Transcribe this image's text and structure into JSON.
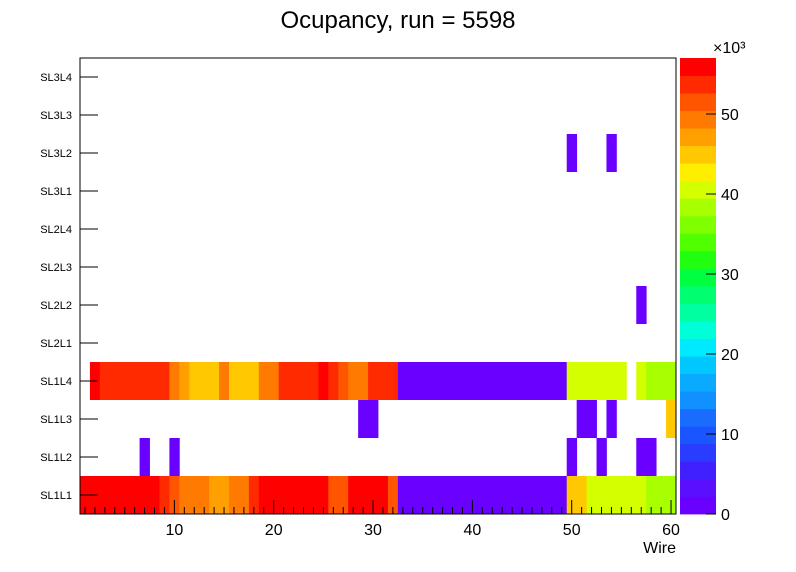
{
  "chart_data": {
    "type": "heatmap",
    "title": "Ocupancy, run = 5598",
    "xlabel": "Wire",
    "ylabel": "",
    "xlim": [
      0.5,
      60.5
    ],
    "x_ticks": [
      10,
      20,
      30,
      40,
      50,
      60
    ],
    "y_categories": [
      "SL1L1",
      "SL1L2",
      "SL1L3",
      "SL1L4",
      "SL2L1",
      "SL2L2",
      "SL2L3",
      "SL2L4",
      "SL3L1",
      "SL3L2",
      "SL3L3",
      "SL3L4"
    ],
    "z_scale_label": "×10³",
    "zlim": [
      0,
      57
    ],
    "z_ticks": [
      0,
      10,
      20,
      30,
      40,
      50
    ],
    "colors": {
      "palette": [
        "#6a00ff",
        "#5a10ff",
        "#4020ff",
        "#2a3cff",
        "#1a55ff",
        "#1a6cff",
        "#1190ff",
        "#0aaaff",
        "#00c8ff",
        "#00eaff",
        "#00ffd8",
        "#00ffa0",
        "#00ff70",
        "#00ff40",
        "#20ff10",
        "#50ff00",
        "#80ff00",
        "#a8ff00",
        "#d4ff00",
        "#ffee00",
        "#ffc800",
        "#ffa000",
        "#ff7a00",
        "#ff5500",
        "#ff2a00",
        "#ff0000"
      ]
    },
    "rows": [
      {
        "name": "SL1L1",
        "values": [
          57,
          57,
          57,
          57,
          57,
          57,
          57,
          57,
          54,
          51,
          49,
          49,
          49,
          47,
          47,
          49,
          49,
          54,
          57,
          57,
          57,
          57,
          57,
          57,
          57,
          51,
          51,
          57,
          57,
          57,
          57,
          52,
          2,
          2,
          2,
          2,
          2,
          2,
          2,
          2,
          2,
          2,
          2,
          2,
          2,
          2,
          2,
          2,
          2,
          44,
          44,
          41,
          41,
          41,
          41,
          41,
          41,
          39,
          39,
          39
        ]
      },
      {
        "name": "SL1L2",
        "values": [
          0,
          0,
          0,
          0,
          0,
          0,
          2,
          0,
          0,
          2,
          0,
          0,
          0,
          0,
          0,
          0,
          0,
          0,
          0,
          0,
          0,
          0,
          0,
          0,
          0,
          0,
          0,
          0,
          0,
          0,
          0,
          0,
          0,
          0,
          0,
          0,
          0,
          0,
          0,
          0,
          0,
          0,
          0,
          0,
          0,
          0,
          0,
          0,
          0,
          2,
          0,
          0,
          2,
          0,
          0,
          0,
          2,
          2,
          0,
          0
        ]
      },
      {
        "name": "SL1L3",
        "values": [
          0,
          0,
          0,
          0,
          0,
          0,
          0,
          0,
          0,
          0,
          0,
          0,
          0,
          0,
          0,
          0,
          0,
          0,
          0,
          0,
          0,
          0,
          0,
          0,
          0,
          0,
          0,
          0,
          2,
          2,
          0,
          0,
          0,
          0,
          0,
          0,
          0,
          0,
          0,
          0,
          0,
          0,
          0,
          0,
          0,
          0,
          0,
          0,
          0,
          0,
          2,
          2,
          0,
          2,
          0,
          0,
          0,
          0,
          0,
          45
        ]
      },
      {
        "name": "SL1L4",
        "values": [
          0,
          57,
          53,
          53,
          53,
          53,
          53,
          53,
          53,
          49,
          47,
          45,
          45,
          45,
          49,
          45,
          45,
          45,
          49,
          49,
          53,
          53,
          53,
          53,
          55,
          53,
          51,
          49,
          49,
          53,
          53,
          53,
          2,
          2,
          2,
          2,
          2,
          2,
          2,
          2,
          2,
          2,
          2,
          2,
          2,
          2,
          2,
          2,
          2,
          41,
          41,
          41,
          41,
          41,
          41,
          0,
          41,
          39,
          39,
          39
        ]
      },
      {
        "name": "SL2L1",
        "values": [
          0,
          0,
          0,
          0,
          0,
          0,
          0,
          0,
          0,
          0,
          0,
          0,
          0,
          0,
          0,
          0,
          0,
          0,
          0,
          0,
          0,
          0,
          0,
          0,
          0,
          0,
          0,
          0,
          0,
          0,
          0,
          0,
          0,
          0,
          0,
          0,
          0,
          0,
          0,
          0,
          0,
          0,
          0,
          0,
          0,
          0,
          0,
          0,
          0,
          0,
          0,
          0,
          0,
          0,
          0,
          0,
          0,
          0,
          0,
          0
        ]
      },
      {
        "name": "SL2L2",
        "values": [
          0,
          0,
          0,
          0,
          0,
          0,
          0,
          0,
          0,
          0,
          0,
          0,
          0,
          0,
          0,
          0,
          0,
          0,
          0,
          0,
          0,
          0,
          0,
          0,
          0,
          0,
          0,
          0,
          0,
          0,
          0,
          0,
          0,
          0,
          0,
          0,
          0,
          0,
          0,
          0,
          0,
          0,
          0,
          0,
          0,
          0,
          0,
          0,
          0,
          0,
          0,
          0,
          0,
          0,
          0,
          0,
          2,
          0,
          0,
          0
        ]
      },
      {
        "name": "SL2L3",
        "values": [
          0,
          0,
          0,
          0,
          0,
          0,
          0,
          0,
          0,
          0,
          0,
          0,
          0,
          0,
          0,
          0,
          0,
          0,
          0,
          0,
          0,
          0,
          0,
          0,
          0,
          0,
          0,
          0,
          0,
          0,
          0,
          0,
          0,
          0,
          0,
          0,
          0,
          0,
          0,
          0,
          0,
          0,
          0,
          0,
          0,
          0,
          0,
          0,
          0,
          0,
          0,
          0,
          0,
          0,
          0,
          0,
          0,
          0,
          0,
          0
        ]
      },
      {
        "name": "SL2L4",
        "values": [
          0,
          0,
          0,
          0,
          0,
          0,
          0,
          0,
          0,
          0,
          0,
          0,
          0,
          0,
          0,
          0,
          0,
          0,
          0,
          0,
          0,
          0,
          0,
          0,
          0,
          0,
          0,
          0,
          0,
          0,
          0,
          0,
          0,
          0,
          0,
          0,
          0,
          0,
          0,
          0,
          0,
          0,
          0,
          0,
          0,
          0,
          0,
          0,
          0,
          0,
          0,
          0,
          0,
          0,
          0,
          0,
          0,
          0,
          0,
          0
        ]
      },
      {
        "name": "SL3L1",
        "values": [
          0,
          0,
          0,
          0,
          0,
          0,
          0,
          0,
          0,
          0,
          0,
          0,
          0,
          0,
          0,
          0,
          0,
          0,
          0,
          0,
          0,
          0,
          0,
          0,
          0,
          0,
          0,
          0,
          0,
          0,
          0,
          0,
          0,
          0,
          0,
          0,
          0,
          0,
          0,
          0,
          0,
          0,
          0,
          0,
          0,
          0,
          0,
          0,
          0,
          0,
          0,
          0,
          0,
          0,
          0,
          0,
          0,
          0,
          0,
          0
        ]
      },
      {
        "name": "SL3L2",
        "values": [
          0,
          0,
          0,
          0,
          0,
          0,
          0,
          0,
          0,
          0,
          0,
          0,
          0,
          0,
          0,
          0,
          0,
          0,
          0,
          0,
          0,
          0,
          0,
          0,
          0,
          0,
          0,
          0,
          0,
          0,
          0,
          0,
          0,
          0,
          0,
          0,
          0,
          0,
          0,
          0,
          0,
          0,
          0,
          0,
          0,
          0,
          0,
          0,
          0,
          2,
          0,
          0,
          0,
          2,
          0,
          0,
          0,
          0,
          0,
          0
        ]
      },
      {
        "name": "SL3L3",
        "values": [
          0,
          0,
          0,
          0,
          0,
          0,
          0,
          0,
          0,
          0,
          0,
          0,
          0,
          0,
          0,
          0,
          0,
          0,
          0,
          0,
          0,
          0,
          0,
          0,
          0,
          0,
          0,
          0,
          0,
          0,
          0,
          0,
          0,
          0,
          0,
          0,
          0,
          0,
          0,
          0,
          0,
          0,
          0,
          0,
          0,
          0,
          0,
          0,
          0,
          0,
          0,
          0,
          0,
          0,
          0,
          0,
          0,
          0,
          0,
          0
        ]
      },
      {
        "name": "SL3L4",
        "values": [
          0,
          0,
          0,
          0,
          0,
          0,
          0,
          0,
          0,
          0,
          0,
          0,
          0,
          0,
          0,
          0,
          0,
          0,
          0,
          0,
          0,
          0,
          0,
          0,
          0,
          0,
          0,
          0,
          0,
          0,
          0,
          0,
          0,
          0,
          0,
          0,
          0,
          0,
          0,
          0,
          0,
          0,
          0,
          0,
          0,
          0,
          0,
          0,
          0,
          0,
          0,
          0,
          0,
          0,
          0,
          0,
          0,
          0,
          0,
          0
        ]
      }
    ]
  }
}
